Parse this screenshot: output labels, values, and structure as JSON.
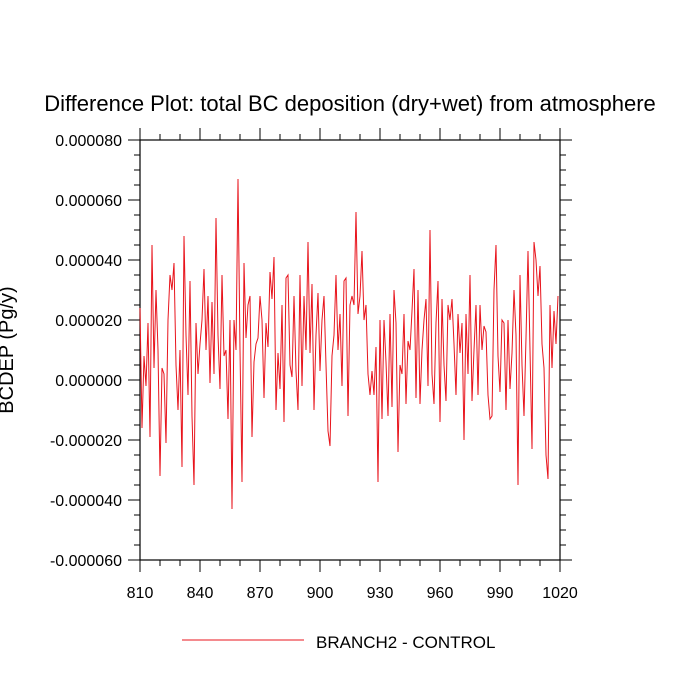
{
  "chart_data": {
    "type": "line",
    "title": "Difference Plot: total BC deposition (dry+wet) from atmosphere",
    "ylabel": "BCDEP (Pg/y)",
    "xlabel": "",
    "xlim": [
      810,
      1020
    ],
    "ylim": [
      -6e-05,
      8e-05
    ],
    "x_ticks": [
      "810",
      "840",
      "870",
      "900",
      "930",
      "960",
      "990",
      "1020"
    ],
    "y_ticks": [
      "0.000080",
      "0.000060",
      "0.000040",
      "0.000020",
      "0.000000",
      "-0.000020",
      "-0.000040",
      "-0.000060"
    ],
    "legend_position": "bottom",
    "grid": false,
    "series": [
      {
        "name": "BRANCH2 - CONTROL",
        "color": "#e8141c",
        "x_start": 810,
        "x_step": 1,
        "values": [
          2.4e-05,
          -1.6e-05,
          8e-06,
          -2e-06,
          1.9e-05,
          -1.9e-05,
          4.5e-05,
          4e-06,
          3e-05,
          1e-05,
          -3.2e-05,
          4e-06,
          2e-06,
          -2.1e-05,
          2e-05,
          3.5e-05,
          3e-05,
          3.9e-05,
          5e-06,
          -1e-05,
          1e-05,
          -2.9e-05,
          4.8e-05,
          1.5e-05,
          -5e-06,
          3.3e-05,
          -1.2e-05,
          -3.5e-05,
          1.9e-05,
          2e-06,
          1.2e-05,
          2e-05,
          3.7e-05,
          1e-05,
          2.8e-05,
          -1e-06,
          2.6e-05,
          2e-06,
          5.4e-05,
          1.5e-05,
          -3e-06,
          3.5e-05,
          8e-06,
          1e-05,
          -1.3e-05,
          2e-05,
          -4.3e-05,
          2e-05,
          1e-05,
          6.7e-05,
          1e-05,
          -3.4e-05,
          3.9e-05,
          1.4e-05,
          2.5e-05,
          2.8e-05,
          -1.9e-05,
          6e-06,
          1.2e-05,
          1.4e-05,
          2.8e-05,
          2e-05,
          -6e-06,
          1.9e-05,
          1.1e-05,
          3.6e-05,
          2.7e-05,
          4.1e-05,
          -1e-05,
          9e-06,
          -3e-06,
          2.5e-05,
          -1.4e-05,
          3.4e-05,
          3.5e-05,
          5e-06,
          1e-06,
          2.8e-05,
          3e-06,
          -1e-05,
          3.5e-05,
          -2e-06,
          2.8e-05,
          1e-05,
          4.6e-05,
          9e-06,
          3.2e-05,
          -1e-05,
          1.5e-05,
          2.9e-05,
          3e-06,
          2e-05,
          2.8e-05,
          5e-06,
          -1.7e-05,
          -2.2e-05,
          8e-06,
          1.5e-05,
          3.5e-05,
          1e-05,
          2.2e-05,
          -2e-06,
          3.3e-05,
          3.4e-05,
          -1.2e-05,
          2.5e-05,
          2.8e-05,
          2.5e-05,
          5.6e-05,
          2.2e-05,
          2.8e-05,
          4.3e-05,
          2e-05,
          2.5e-05,
          2e-06,
          -5e-06,
          3e-06,
          -5e-06,
          1.1e-05,
          -3.4e-05,
          2e-05,
          -1.3e-05,
          2e-05,
          6e-06,
          -1.2e-05,
          2.2e-05,
          -9e-06,
          3e-05,
          1.9e-05,
          -2.4e-05,
          5e-06,
          2e-06,
          2.2e-05,
          -8e-06,
          1.3e-05,
          1e-05,
          2.3e-05,
          3.7e-05,
          -6e-06,
          3e-05,
          -8e-06,
          1e-05,
          2e-05,
          2.7e-05,
          -2e-06,
          5e-05,
          2e-06,
          -8e-06,
          1.9e-05,
          3.3e-05,
          -1.4e-05,
          2.7e-05,
          5e-06,
          -7e-06,
          2.5e-05,
          2e-05,
          2.7e-05,
          1.2e-05,
          -5e-06,
          2.2e-05,
          9e-06,
          1.9e-05,
          -2e-05,
          2.2e-05,
          2e-06,
          3.5e-05,
          -7e-06,
          1e-05,
          2.5e-05,
          -5e-06,
          2.5e-05,
          1e-05,
          1.8e-05,
          1.6e-05,
          -5e-06,
          -1.3e-05,
          -1.2e-05,
          3e-05,
          4.5e-05,
          8e-06,
          -4e-06,
          2e-05,
          1.9e-05,
          -1e-05,
          2e-05,
          -3e-06,
          9e-06,
          3e-05,
          1.5e-05,
          -3.5e-05,
          3.5e-05,
          5e-06,
          -1.2e-05,
          1.4e-05,
          4.3e-05,
          1e-05,
          -2.3e-05,
          4.6e-05,
          4e-05,
          2.8e-05,
          3.8e-05,
          1.2e-05,
          4e-06,
          -2.5e-05,
          -3.3e-05,
          2.5e-05,
          4e-06,
          2.3e-05,
          1.2e-05,
          2.8e-05
        ]
      }
    ]
  }
}
